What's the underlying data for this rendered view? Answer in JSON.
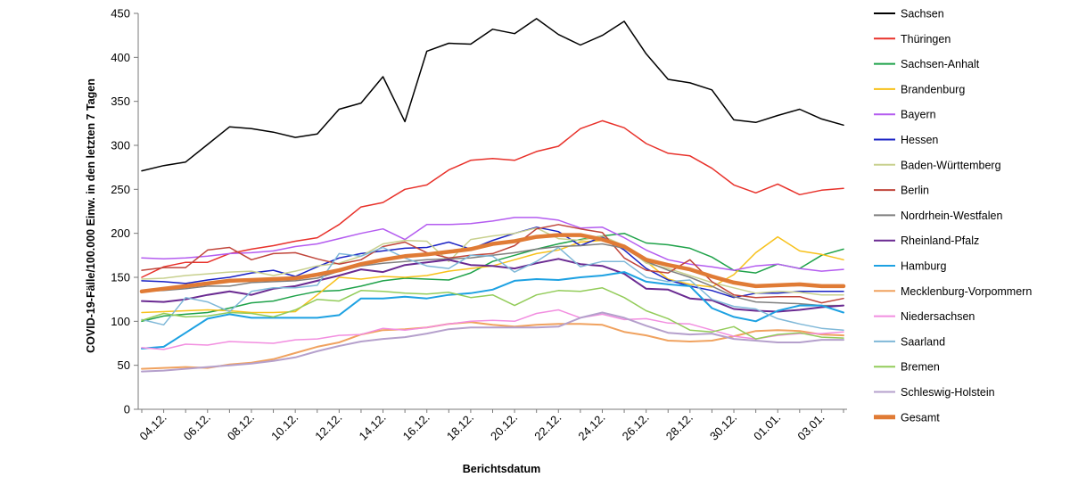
{
  "chart_data": {
    "type": "line",
    "title": "",
    "xlabel": "Berichtsdatum",
    "ylabel": "COVID-19-Fälle/100.000 Einw. in den letzten 7 Tagen",
    "ylim": [
      0,
      450
    ],
    "yticks": [
      0,
      50,
      100,
      150,
      200,
      250,
      300,
      350,
      400,
      450
    ],
    "grid": false,
    "legend_position": "right",
    "x": [
      "03.12.",
      "04.12.",
      "05.12.",
      "06.12.",
      "07.12.",
      "08.12.",
      "09.12.",
      "10.12.",
      "11.12.",
      "12.12.",
      "13.12.",
      "14.12.",
      "15.12.",
      "16.12.",
      "17.12.",
      "18.12.",
      "19.12.",
      "20.12.",
      "21.12.",
      "22.12.",
      "23.12.",
      "24.12.",
      "25.12.",
      "26.12.",
      "27.12.",
      "28.12.",
      "29.12.",
      "30.12.",
      "31.12.",
      "01.01.",
      "02.01.",
      "03.01.",
      "04.01."
    ],
    "x_tick_labels": [
      "04.12.",
      "06.12.",
      "08.12.",
      "10.12.",
      "12.12.",
      "14.12.",
      "16.12.",
      "18.12.",
      "20.12.",
      "22.12.",
      "24.12.",
      "26.12.",
      "28.12.",
      "30.12.",
      "01.01.",
      "03.01."
    ],
    "series": [
      {
        "name": "Sachsen",
        "color": "#000000",
        "width": 1.5,
        "values": [
          271,
          277,
          281,
          301,
          321,
          319,
          315,
          309,
          313,
          341,
          348,
          378,
          327,
          407,
          416,
          415,
          432,
          427,
          444,
          426,
          414,
          425,
          441,
          404,
          375,
          371,
          363,
          329,
          326,
          334,
          341,
          330,
          323
        ]
      },
      {
        "name": "Thüringen",
        "color": "#e8312a",
        "width": 1.5,
        "values": [
          150,
          162,
          167,
          167,
          177,
          182,
          186,
          191,
          195,
          210,
          230,
          235,
          250,
          255,
          272,
          283,
          285,
          283,
          293,
          299,
          319,
          328,
          320,
          302,
          291,
          288,
          274,
          255,
          246,
          256,
          244,
          249,
          251
        ]
      },
      {
        "name": "Sachsen-Anhalt",
        "color": "#1fa24a",
        "width": 1.5,
        "values": [
          100,
          106,
          108,
          110,
          115,
          121,
          123,
          129,
          134,
          135,
          140,
          146,
          149,
          148,
          147,
          155,
          168,
          175,
          182,
          188,
          193,
          197,
          200,
          189,
          187,
          183,
          173,
          158,
          155,
          165,
          160,
          175,
          182
        ]
      },
      {
        "name": "Brandenburg",
        "color": "#f7c11a",
        "width": 1.5,
        "values": [
          110,
          111,
          112,
          113,
          112,
          110,
          110,
          111,
          130,
          150,
          148,
          151,
          150,
          152,
          157,
          160,
          163,
          170,
          177,
          181,
          190,
          192,
          186,
          168,
          148,
          142,
          139,
          153,
          178,
          196,
          180,
          176,
          170
        ]
      },
      {
        "name": "Bayern",
        "color": "#b45cf0",
        "width": 1.5,
        "values": [
          172,
          171,
          172,
          174,
          177,
          178,
          180,
          185,
          188,
          194,
          200,
          205,
          193,
          210,
          210,
          211,
          214,
          218,
          218,
          215,
          206,
          207,
          195,
          181,
          170,
          165,
          162,
          158,
          163,
          165,
          160,
          157,
          159
        ]
      },
      {
        "name": "Hessen",
        "color": "#1a22c4",
        "width": 1.5,
        "values": [
          146,
          145,
          143,
          147,
          150,
          155,
          158,
          151,
          162,
          172,
          177,
          180,
          183,
          184,
          190,
          182,
          192,
          200,
          207,
          202,
          186,
          196,
          181,
          160,
          147,
          140,
          135,
          127,
          132,
          132,
          134,
          134,
          134
        ]
      },
      {
        "name": "Baden-Württemberg",
        "color": "#c8d08e",
        "width": 1.5,
        "values": [
          148,
          149,
          152,
          154,
          156,
          157,
          152,
          157,
          163,
          166,
          174,
          188,
          192,
          191,
          168,
          193,
          197,
          200,
          206,
          194,
          192,
          197,
          186,
          166,
          160,
          152,
          144,
          138,
          132,
          134,
          133,
          130,
          130
        ]
      },
      {
        "name": "Berlin",
        "color": "#c0453a",
        "width": 1.5,
        "values": [
          158,
          161,
          161,
          181,
          184,
          170,
          177,
          178,
          171,
          165,
          170,
          185,
          190,
          178,
          172,
          175,
          177,
          186,
          205,
          210,
          205,
          201,
          172,
          158,
          155,
          170,
          145,
          130,
          127,
          128,
          128,
          121,
          126
        ]
      },
      {
        "name": "Nordrhein-Westfalen",
        "color": "#7f7f7f",
        "width": 1.5,
        "values": [
          134,
          135,
          137,
          140,
          140,
          144,
          145,
          146,
          149,
          157,
          163,
          166,
          168,
          170,
          171,
          172,
          175,
          178,
          182,
          185,
          186,
          188,
          183,
          168,
          158,
          150,
          140,
          128,
          122,
          121,
          120,
          118,
          118
        ]
      },
      {
        "name": "Rheinland-Pfalz",
        "color": "#6a2a91",
        "width": 2,
        "values": [
          123,
          122,
          125,
          130,
          134,
          130,
          137,
          140,
          146,
          152,
          159,
          156,
          164,
          167,
          170,
          164,
          163,
          160,
          166,
          171,
          165,
          163,
          154,
          137,
          136,
          126,
          124,
          114,
          112,
          111,
          113,
          116,
          118
        ]
      },
      {
        "name": "Hamburg",
        "color": "#1da1e2",
        "width": 2,
        "values": [
          69,
          71,
          87,
          103,
          108,
          104,
          104,
          104,
          104,
          107,
          126,
          126,
          128,
          126,
          130,
          132,
          136,
          146,
          148,
          147,
          150,
          152,
          156,
          145,
          142,
          140,
          115,
          105,
          100,
          112,
          118,
          118,
          110
        ]
      },
      {
        "name": "Mecklenburg-Vorpommern",
        "color": "#f0a25f",
        "width": 2,
        "values": [
          46,
          47,
          48,
          47,
          51,
          53,
          57,
          64,
          71,
          76,
          85,
          90,
          91,
          93,
          97,
          99,
          96,
          94,
          96,
          97,
          97,
          96,
          88,
          84,
          78,
          77,
          78,
          83,
          89,
          90,
          89,
          85,
          84
        ]
      },
      {
        "name": "Niedersachsen",
        "color": "#f28ee0",
        "width": 1.5,
        "values": [
          70,
          68,
          74,
          73,
          77,
          76,
          75,
          79,
          80,
          84,
          85,
          92,
          90,
          93,
          97,
          100,
          101,
          100,
          109,
          113,
          104,
          108,
          102,
          103,
          98,
          97,
          90,
          83,
          80,
          84,
          86,
          86,
          88
        ]
      },
      {
        "name": "Saarland",
        "color": "#7fb8d8",
        "width": 1.5,
        "values": [
          102,
          96,
          127,
          122,
          111,
          134,
          138,
          138,
          141,
          177,
          174,
          184,
          172,
          163,
          160,
          175,
          174,
          156,
          168,
          184,
          162,
          168,
          168,
          150,
          145,
          147,
          125,
          117,
          114,
          103,
          97,
          92,
          90
        ]
      },
      {
        "name": "Bremen",
        "color": "#93cc5a",
        "width": 1.5,
        "values": [
          101,
          109,
          105,
          106,
          110,
          109,
          105,
          113,
          125,
          123,
          135,
          134,
          132,
          131,
          133,
          127,
          130,
          118,
          130,
          135,
          134,
          138,
          127,
          112,
          103,
          90,
          88,
          94,
          80,
          85,
          87,
          82,
          81
        ]
      },
      {
        "name": "Schleswig-Holstein",
        "color": "#b5a0cc",
        "width": 2,
        "values": [
          43,
          44,
          46,
          48,
          50,
          52,
          55,
          59,
          66,
          72,
          77,
          80,
          82,
          86,
          91,
          93,
          93,
          93,
          93,
          94,
          104,
          110,
          104,
          95,
          87,
          85,
          86,
          80,
          78,
          76,
          76,
          79,
          79
        ]
      },
      {
        "name": "Gesamt",
        "color": "#e07b35",
        "width": 4.5,
        "values": [
          134,
          137,
          140,
          143,
          146,
          147,
          148,
          149,
          153,
          158,
          165,
          170,
          174,
          176,
          179,
          182,
          188,
          191,
          196,
          198,
          198,
          193,
          185,
          170,
          164,
          159,
          151,
          144,
          140,
          141,
          142,
          140,
          140
        ]
      }
    ]
  }
}
